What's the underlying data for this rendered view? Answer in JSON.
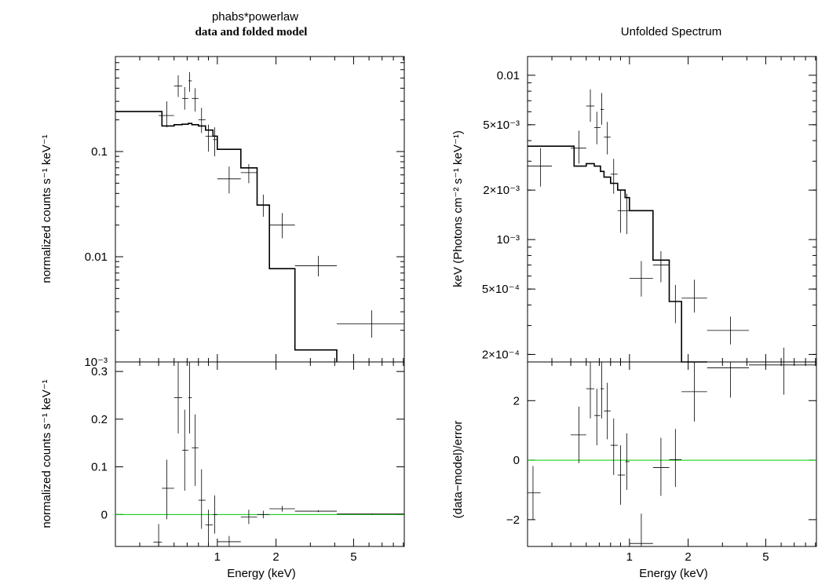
{
  "titles": {
    "left_model": "phabs*powerlaw",
    "left_sub": "data and folded model",
    "right": "Unfolded Spectrum"
  },
  "labels": {
    "x_axis": "Energy (keV)",
    "left_top_y": "normalized counts s⁻¹ keV⁻¹",
    "left_bottom_y": "normalized counts s⁻¹ keV⁻¹",
    "right_top_y": "keV (Photons cm⁻² s⁻¹ keV⁻¹)",
    "right_bottom_y": "(data−model)/error"
  },
  "colors": {
    "data": "#000000",
    "model": "#000000",
    "zero_line": "#00cc00"
  },
  "chart_data": [
    {
      "id": "left-top",
      "type": "scatter",
      "title": "phabs*powerlaw / data and folded model",
      "xlabel": "",
      "ylabel": "normalized counts s⁻¹ keV⁻¹",
      "x_scale": "log",
      "y_scale": "log",
      "xlim": [
        0.3,
        9.1
      ],
      "ylim": [
        0.001,
        0.8
      ],
      "x_ticks": [
        {
          "v": 1,
          "label": "1"
        },
        {
          "v": 2,
          "label": "2"
        },
        {
          "v": 5,
          "label": "5"
        }
      ],
      "y_ticks": [
        {
          "v": 0.1,
          "label": "0.1"
        },
        {
          "v": 0.01,
          "label": "0.01"
        },
        {
          "v": 0.001,
          "label": "10⁻³"
        }
      ],
      "data_points": [
        {
          "x": 0.55,
          "xl": 0.5,
          "xh": 0.6,
          "y": 0.22,
          "yl": 0.17,
          "yh": 0.3
        },
        {
          "x": 0.63,
          "xl": 0.6,
          "xh": 0.66,
          "y": 0.42,
          "yl": 0.33,
          "yh": 0.53
        },
        {
          "x": 0.68,
          "xl": 0.66,
          "xh": 0.71,
          "y": 0.32,
          "yl": 0.25,
          "yh": 0.41
        },
        {
          "x": 0.72,
          "xl": 0.71,
          "xh": 0.74,
          "y": 0.47,
          "yl": 0.37,
          "yh": 0.57
        },
        {
          "x": 0.77,
          "xl": 0.74,
          "xh": 0.8,
          "y": 0.32,
          "yl": 0.24,
          "yh": 0.4
        },
        {
          "x": 0.83,
          "xl": 0.8,
          "xh": 0.87,
          "y": 0.2,
          "yl": 0.15,
          "yh": 0.26
        },
        {
          "x": 0.9,
          "xl": 0.87,
          "xh": 0.95,
          "y": 0.14,
          "yl": 0.1,
          "yh": 0.18
        },
        {
          "x": 0.97,
          "xl": 0.95,
          "xh": 1.0,
          "y": 0.13,
          "yl": 0.09,
          "yh": 0.17
        },
        {
          "x": 1.15,
          "xl": 1.0,
          "xh": 1.32,
          "y": 0.055,
          "yl": 0.04,
          "yh": 0.072
        },
        {
          "x": 1.45,
          "xl": 1.32,
          "xh": 1.6,
          "y": 0.063,
          "yl": 0.05,
          "yh": 0.076
        },
        {
          "x": 1.72,
          "xl": 1.6,
          "xh": 1.85,
          "y": 0.031,
          "yl": 0.024,
          "yh": 0.039
        },
        {
          "x": 2.15,
          "xl": 1.85,
          "xh": 2.5,
          "y": 0.02,
          "yl": 0.015,
          "yh": 0.026
        },
        {
          "x": 3.3,
          "xl": 2.5,
          "xh": 4.1,
          "y": 0.0082,
          "yl": 0.0065,
          "yh": 0.0102
        },
        {
          "x": 6.2,
          "xl": 4.1,
          "xh": 9.1,
          "y": 0.0023,
          "yl": 0.0017,
          "yh": 0.0031
        }
      ],
      "model_step": [
        {
          "x0": 0.3,
          "x1": 0.52,
          "y": 0.24
        },
        {
          "x0": 0.52,
          "x1": 0.6,
          "y": 0.175
        },
        {
          "x0": 0.6,
          "x1": 0.66,
          "y": 0.18
        },
        {
          "x0": 0.66,
          "x1": 0.71,
          "y": 0.182
        },
        {
          "x0": 0.71,
          "x1": 0.74,
          "y": 0.185
        },
        {
          "x0": 0.74,
          "x1": 0.8,
          "y": 0.18
        },
        {
          "x0": 0.8,
          "x1": 0.87,
          "y": 0.175
        },
        {
          "x0": 0.87,
          "x1": 0.95,
          "y": 0.16
        },
        {
          "x0": 0.95,
          "x1": 1.0,
          "y": 0.14
        },
        {
          "x0": 1.0,
          "x1": 1.32,
          "y": 0.105
        },
        {
          "x0": 1.32,
          "x1": 1.6,
          "y": 0.07
        },
        {
          "x0": 1.6,
          "x1": 1.85,
          "y": 0.031
        },
        {
          "x0": 1.85,
          "x1": 2.5,
          "y": 0.0077
        },
        {
          "x0": 2.5,
          "x1": 4.1,
          "y": 0.0013
        }
      ]
    },
    {
      "id": "left-bottom",
      "type": "scatter",
      "xlabel": "Energy (keV)",
      "ylabel": "normalized counts s⁻¹ keV⁻¹",
      "x_scale": "log",
      "y_scale": "linear",
      "xlim": [
        0.3,
        9.1
      ],
      "ylim": [
        -0.067,
        0.32
      ],
      "x_ticks": [
        {
          "v": 1,
          "label": "1"
        },
        {
          "v": 2,
          "label": "2"
        },
        {
          "v": 5,
          "label": "5"
        }
      ],
      "y_ticks": [
        {
          "v": 0,
          "label": "0"
        },
        {
          "v": 0.1,
          "label": "0.1"
        },
        {
          "v": 0.2,
          "label": "0.2"
        },
        {
          "v": 0.3,
          "label": "0.3"
        }
      ],
      "reference_line": 0,
      "data_points": [
        {
          "x": 0.5,
          "xl": 0.47,
          "xh": 0.52,
          "y": -0.058,
          "yl": -0.067,
          "yh": -0.02
        },
        {
          "x": 0.55,
          "xl": 0.52,
          "xh": 0.6,
          "y": 0.055,
          "yl": -0.01,
          "yh": 0.115
        },
        {
          "x": 0.63,
          "xl": 0.6,
          "xh": 0.66,
          "y": 0.245,
          "yl": 0.17,
          "yh": 0.32
        },
        {
          "x": 0.68,
          "xl": 0.66,
          "xh": 0.71,
          "y": 0.135,
          "yl": 0.05,
          "yh": 0.22
        },
        {
          "x": 0.72,
          "xl": 0.71,
          "xh": 0.74,
          "y": 0.245,
          "yl": 0.17,
          "yh": 0.32
        },
        {
          "x": 0.77,
          "xl": 0.74,
          "xh": 0.8,
          "y": 0.14,
          "yl": 0.06,
          "yh": 0.21
        },
        {
          "x": 0.83,
          "xl": 0.8,
          "xh": 0.87,
          "y": 0.03,
          "yl": -0.03,
          "yh": 0.095
        },
        {
          "x": 0.9,
          "xl": 0.87,
          "xh": 0.95,
          "y": -0.022,
          "yl": -0.065,
          "yh": 0.01
        },
        {
          "x": 0.97,
          "xl": 0.95,
          "xh": 1.0,
          "y": 0.0,
          "yl": -0.04,
          "yh": 0.04
        },
        {
          "x": 1.15,
          "xl": 1.0,
          "xh": 1.32,
          "y": -0.057,
          "yl": -0.067,
          "yh": -0.045
        },
        {
          "x": 1.45,
          "xl": 1.32,
          "xh": 1.6,
          "y": -0.005,
          "yl": -0.02,
          "yh": 0.01
        },
        {
          "x": 1.72,
          "xl": 1.6,
          "xh": 1.85,
          "y": 0.0,
          "yl": -0.008,
          "yh": 0.008
        },
        {
          "x": 2.15,
          "xl": 1.85,
          "xh": 2.5,
          "y": 0.012,
          "yl": 0.006,
          "yh": 0.018
        },
        {
          "x": 3.3,
          "xl": 2.5,
          "xh": 4.1,
          "y": 0.007,
          "yl": 0.005,
          "yh": 0.009
        },
        {
          "x": 6.2,
          "xl": 4.1,
          "xh": 9.1,
          "y": 0.001,
          "yl": 0.0,
          "yh": 0.002
        }
      ]
    },
    {
      "id": "right-top",
      "type": "scatter",
      "title": "Unfolded Spectrum",
      "xlabel": "",
      "ylabel": "keV (Photons cm⁻² s⁻¹ keV⁻¹)",
      "x_scale": "log",
      "y_scale": "log",
      "xlim": [
        0.3,
        9.1
      ],
      "ylim": [
        0.00018,
        0.013
      ],
      "x_ticks": [
        {
          "v": 1,
          "label": "1"
        },
        {
          "v": 2,
          "label": "2"
        },
        {
          "v": 5,
          "label": "5"
        }
      ],
      "y_ticks": [
        {
          "v": 0.01,
          "label": "0.01"
        },
        {
          "v": 0.005,
          "label": "5×10⁻³"
        },
        {
          "v": 0.002,
          "label": "2×10⁻³"
        },
        {
          "v": 0.001,
          "label": "10⁻³"
        },
        {
          "v": 0.0005,
          "label": "5×10⁻⁴"
        },
        {
          "v": 0.0002,
          "label": "2×10⁻⁴"
        }
      ],
      "data_points": [
        {
          "x": 0.35,
          "xl": 0.3,
          "xh": 0.4,
          "y": 0.0028,
          "yl": 0.0021,
          "yh": 0.0036
        },
        {
          "x": 0.55,
          "xl": 0.5,
          "xh": 0.6,
          "y": 0.0036,
          "yl": 0.0029,
          "yh": 0.0046
        },
        {
          "x": 0.63,
          "xl": 0.6,
          "xh": 0.66,
          "y": 0.0065,
          "yl": 0.0052,
          "yh": 0.0082
        },
        {
          "x": 0.68,
          "xl": 0.66,
          "xh": 0.71,
          "y": 0.0048,
          "yl": 0.0038,
          "yh": 0.006
        },
        {
          "x": 0.72,
          "xl": 0.71,
          "xh": 0.74,
          "y": 0.0062,
          "yl": 0.005,
          "yh": 0.0078
        },
        {
          "x": 0.77,
          "xl": 0.74,
          "xh": 0.8,
          "y": 0.0042,
          "yl": 0.0033,
          "yh": 0.0052
        },
        {
          "x": 0.83,
          "xl": 0.8,
          "xh": 0.87,
          "y": 0.0025,
          "yl": 0.0019,
          "yh": 0.0031
        },
        {
          "x": 0.9,
          "xl": 0.87,
          "xh": 0.95,
          "y": 0.0015,
          "yl": 0.0011,
          "yh": 0.002
        },
        {
          "x": 0.97,
          "xl": 0.95,
          "xh": 1.0,
          "y": 0.0015,
          "yl": 0.00108,
          "yh": 0.0019
        },
        {
          "x": 1.15,
          "xl": 1.0,
          "xh": 1.32,
          "y": 0.00058,
          "yl": 0.00045,
          "yh": 0.00074
        },
        {
          "x": 1.45,
          "xl": 1.32,
          "xh": 1.6,
          "y": 0.0007,
          "yl": 0.00055,
          "yh": 0.00085
        },
        {
          "x": 1.72,
          "xl": 1.6,
          "xh": 1.85,
          "y": 0.00042,
          "yl": 0.00031,
          "yh": 0.00053
        },
        {
          "x": 2.15,
          "xl": 1.85,
          "xh": 2.5,
          "y": 0.00044,
          "yl": 0.00036,
          "yh": 0.00057
        },
        {
          "x": 3.3,
          "xl": 2.5,
          "xh": 4.1,
          "y": 0.00028,
          "yl": 0.00023,
          "yh": 0.00034
        },
        {
          "x": 6.2,
          "xl": 4.1,
          "xh": 9.1,
          "y": 0.00017,
          "yl": 0.00013,
          "yh": 0.00022
        }
      ],
      "model_step": [
        {
          "x0": 0.3,
          "x1": 0.52,
          "y": 0.0037
        },
        {
          "x0": 0.52,
          "x1": 0.6,
          "y": 0.0028
        },
        {
          "x0": 0.6,
          "x1": 0.66,
          "y": 0.0029
        },
        {
          "x0": 0.66,
          "x1": 0.71,
          "y": 0.0028
        },
        {
          "x0": 0.71,
          "x1": 0.74,
          "y": 0.0026
        },
        {
          "x0": 0.74,
          "x1": 0.8,
          "y": 0.0024
        },
        {
          "x0": 0.8,
          "x1": 0.87,
          "y": 0.0022
        },
        {
          "x0": 0.87,
          "x1": 0.95,
          "y": 0.002
        },
        {
          "x0": 0.95,
          "x1": 1.0,
          "y": 0.0018
        },
        {
          "x0": 1.0,
          "x1": 1.32,
          "y": 0.0015
        },
        {
          "x0": 1.32,
          "x1": 1.6,
          "y": 0.00075
        },
        {
          "x0": 1.6,
          "x1": 1.85,
          "y": 0.00042
        },
        {
          "x0": 1.85,
          "x1": 2.5,
          "y": 0.00012
        }
      ]
    },
    {
      "id": "right-bottom",
      "type": "scatter",
      "xlabel": "Energy (keV)",
      "ylabel": "(data−model)/error",
      "x_scale": "log",
      "y_scale": "linear",
      "xlim": [
        0.3,
        9.1
      ],
      "ylim": [
        -2.9,
        3.3
      ],
      "x_ticks": [
        {
          "v": 1,
          "label": "1"
        },
        {
          "v": 2,
          "label": "2"
        },
        {
          "v": 5,
          "label": "5"
        }
      ],
      "y_ticks": [
        {
          "v": -2,
          "label": "−2"
        },
        {
          "v": 0,
          "label": "0"
        },
        {
          "v": 2,
          "label": "2"
        }
      ],
      "reference_line": 0,
      "data_points": [
        {
          "x": 0.32,
          "xl": 0.3,
          "xh": 0.35,
          "y": -1.1,
          "yl": -2.0,
          "yh": -0.2
        },
        {
          "x": 0.55,
          "xl": 0.5,
          "xh": 0.6,
          "y": 0.85,
          "yl": -0.1,
          "yh": 1.8
        },
        {
          "x": 0.63,
          "xl": 0.6,
          "xh": 0.66,
          "y": 2.4,
          "yl": 1.4,
          "yh": 3.3
        },
        {
          "x": 0.68,
          "xl": 0.66,
          "xh": 0.71,
          "y": 1.5,
          "yl": 0.5,
          "yh": 2.4
        },
        {
          "x": 0.72,
          "xl": 0.71,
          "xh": 0.74,
          "y": 2.4,
          "yl": 1.4,
          "yh": 3.3
        },
        {
          "x": 0.77,
          "xl": 0.74,
          "xh": 0.8,
          "y": 1.65,
          "yl": 0.7,
          "yh": 2.6
        },
        {
          "x": 0.83,
          "xl": 0.8,
          "xh": 0.87,
          "y": 0.5,
          "yl": -0.5,
          "yh": 1.4
        },
        {
          "x": 0.9,
          "xl": 0.87,
          "xh": 0.95,
          "y": -0.5,
          "yl": -1.5,
          "yh": 0.5
        },
        {
          "x": 0.97,
          "xl": 0.95,
          "xh": 1.0,
          "y": -0.05,
          "yl": -1.0,
          "yh": 0.9
        },
        {
          "x": 1.15,
          "xl": 1.0,
          "xh": 1.32,
          "y": -2.8,
          "yl": -2.9,
          "yh": -1.8
        },
        {
          "x": 1.45,
          "xl": 1.32,
          "xh": 1.6,
          "y": -0.25,
          "yl": -1.2,
          "yh": 0.75
        },
        {
          "x": 1.72,
          "xl": 1.6,
          "xh": 1.85,
          "y": 0.02,
          "yl": -0.9,
          "yh": 1.05
        },
        {
          "x": 2.15,
          "xl": 1.85,
          "xh": 2.5,
          "y": 2.3,
          "yl": 1.3,
          "yh": 3.3
        },
        {
          "x": 3.3,
          "xl": 2.5,
          "xh": 4.1,
          "y": 3.1,
          "yl": 2.1,
          "yh": 3.3
        },
        {
          "x": 6.2,
          "xl": 4.1,
          "xh": 9.1,
          "y": 3.2,
          "yl": 2.2,
          "yh": 3.3
        }
      ]
    }
  ]
}
